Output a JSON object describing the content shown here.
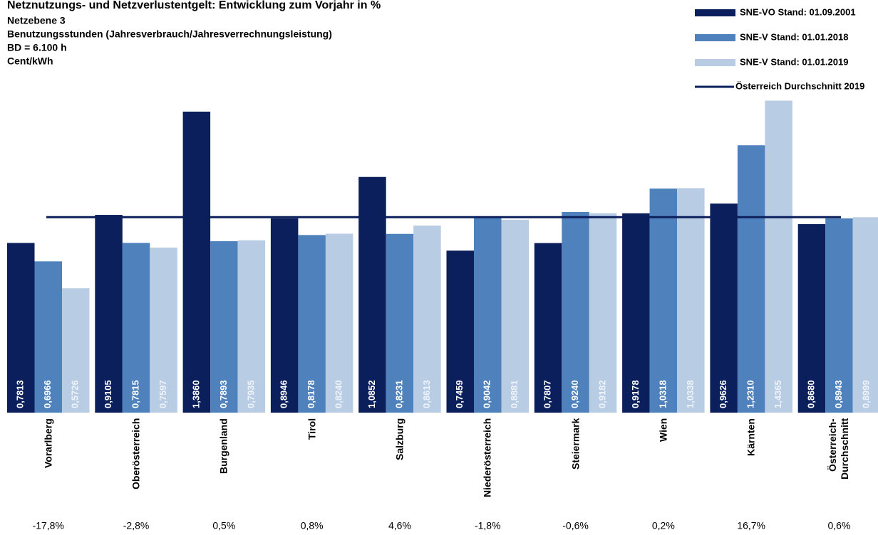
{
  "chart_data": {
    "type": "bar",
    "title": "Netznutzungs- und Netzverlustentgelt: Entwicklung zum Vorjahr in %",
    "subtitles": [
      "Netzebene 3",
      "Benutzungsstunden (Jahresverbrauch/Jahresverrechnungsleistung)",
      "BD = 6.100 h",
      "Cent/kWh"
    ],
    "categories": [
      "Vorarlberg",
      "Oberösterreich",
      "Burgenland",
      "Tirol",
      "Salzburg",
      "Niederösterreich",
      "Steiermark",
      "Wien",
      "Kärnten",
      "Österreich-\nDurchschnitt"
    ],
    "series": [
      {
        "name": "SNE-VO Stand: 01.09.2001",
        "color": "#0b1f5c",
        "values": [
          0.7813,
          0.9105,
          1.386,
          0.8946,
          1.0852,
          0.7459,
          0.7807,
          0.9178,
          0.9626,
          0.868
        ],
        "value_labels": [
          "0,7813",
          "0,9105",
          "1,3860",
          "0,8946",
          "1,0852",
          "0,7459",
          "0,7807",
          "0,9178",
          "0,9626",
          "0,8680"
        ]
      },
      {
        "name": "SNE-V Stand: 01.01.2018",
        "color": "#4f81bd",
        "values": [
          0.6966,
          0.7815,
          0.7893,
          0.8178,
          0.8231,
          0.9042,
          0.924,
          1.0318,
          1.231,
          0.8943
        ],
        "value_labels": [
          "0,6966",
          "0,7815",
          "0,7893",
          "0,8178",
          "0,8231",
          "0,9042",
          "0,9240",
          "1,0318",
          "1,2310",
          "0,8943"
        ]
      },
      {
        "name": "SNE-V Stand: 01.01.2019",
        "color": "#b8cce4",
        "values": [
          0.5726,
          0.7597,
          0.7935,
          0.824,
          0.8613,
          0.8881,
          0.9182,
          1.0338,
          1.4365,
          0.8999
        ],
        "value_labels": [
          "0,5726",
          "0,7597",
          "0,7935",
          "0,8240",
          "0,8613",
          "0,8881",
          "0,9182",
          "1,0338",
          "1,4365",
          "0,8999"
        ]
      }
    ],
    "reference_line": {
      "name": "Österreich Durchschnitt 2019",
      "value": 0.8999,
      "color": "#0b1f5c"
    },
    "annotations": [
      "-17,8%",
      "-2,8%",
      "0,5%",
      "0,8%",
      "4,6%",
      "-1,8%",
      "-0,6%",
      "0,2%",
      "16,7%",
      "0,6%"
    ],
    "ylim": [
      0,
      1.9
    ]
  }
}
